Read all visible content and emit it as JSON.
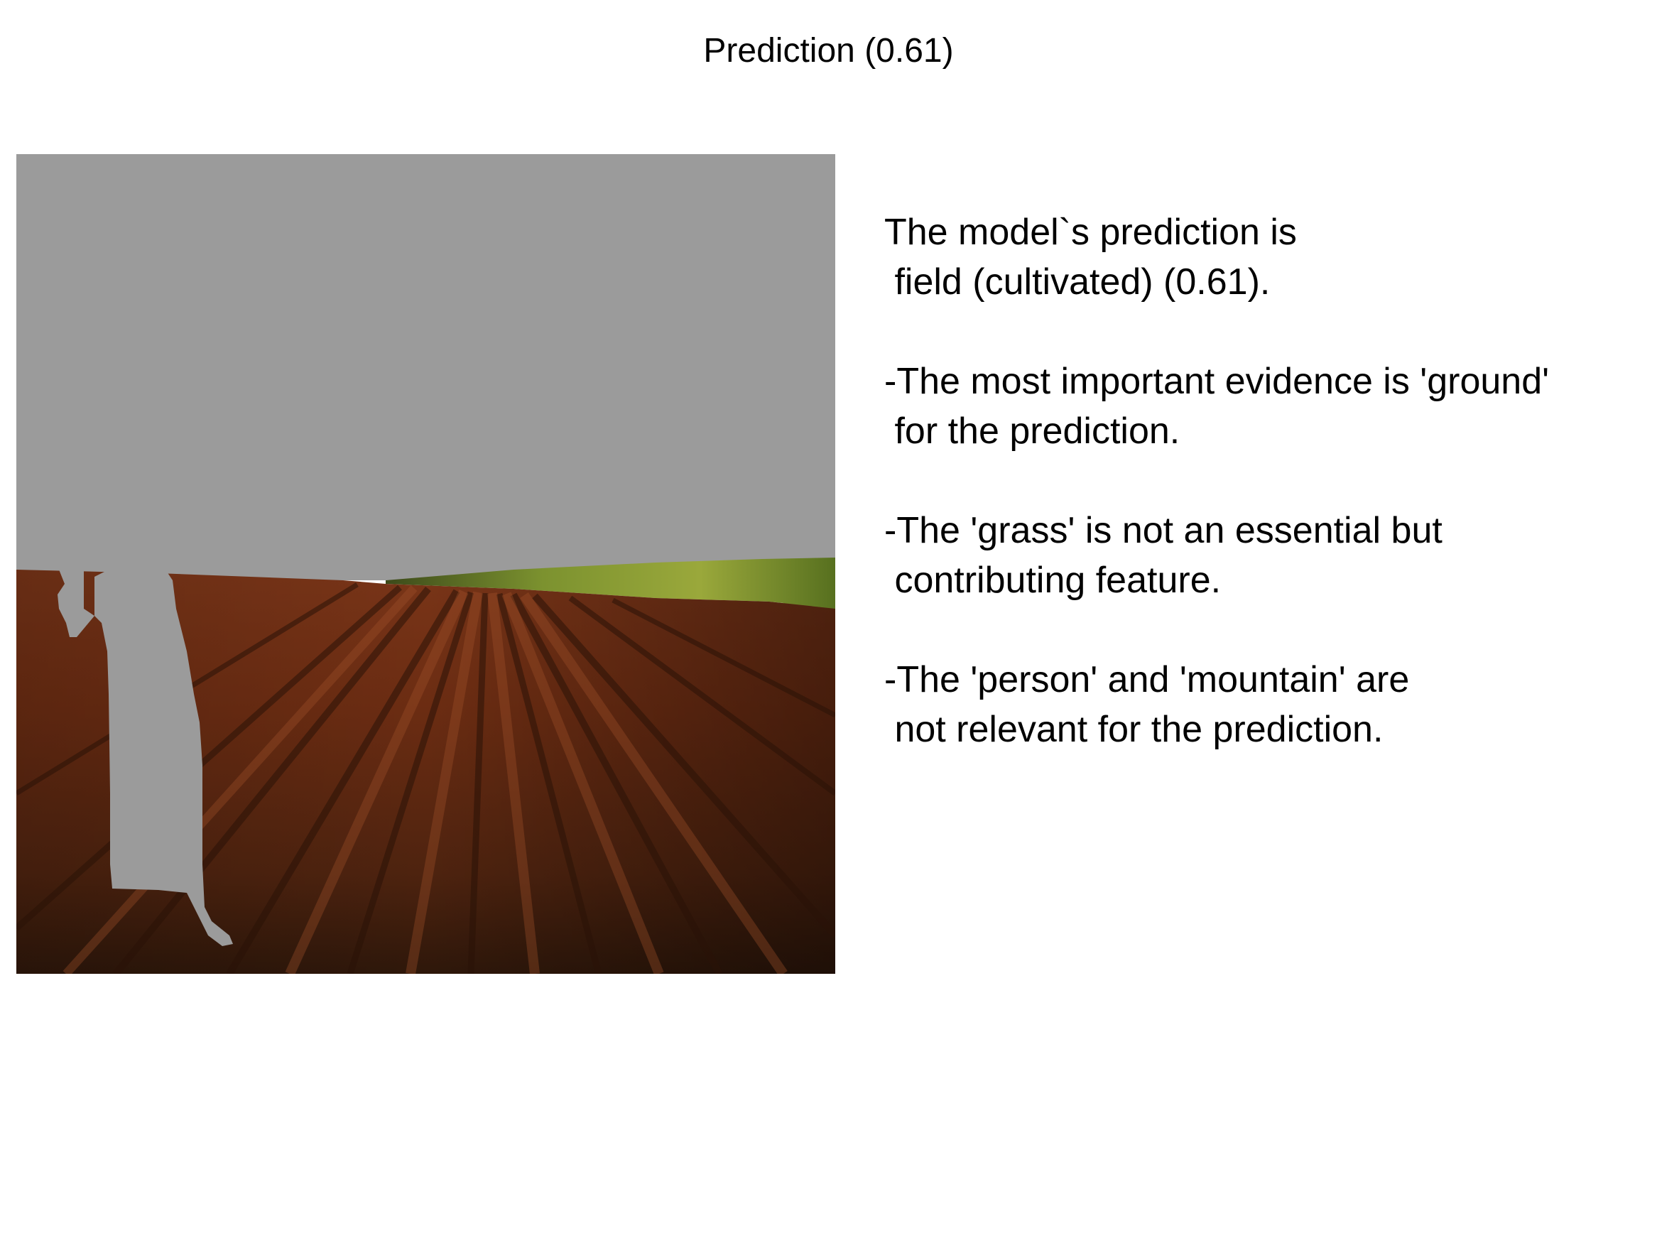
{
  "title": "Prediction (0.61)",
  "image": {
    "description_icon": "masked-field-scene-image",
    "mask_color": "#9b9b9b",
    "soil_color": "#5e2a14",
    "grass_color": "#6f8a2c"
  },
  "explanation": {
    "lines": [
      "The model`s prediction is",
      " field (cultivated) (0.61).",
      "",
      "-The most important evidence is 'ground'",
      " for the prediction.",
      "",
      "-The 'grass' is not an essential but",
      " contributing feature.",
      "",
      "-The 'person' and 'mountain' are",
      " not relevant for the prediction."
    ]
  }
}
